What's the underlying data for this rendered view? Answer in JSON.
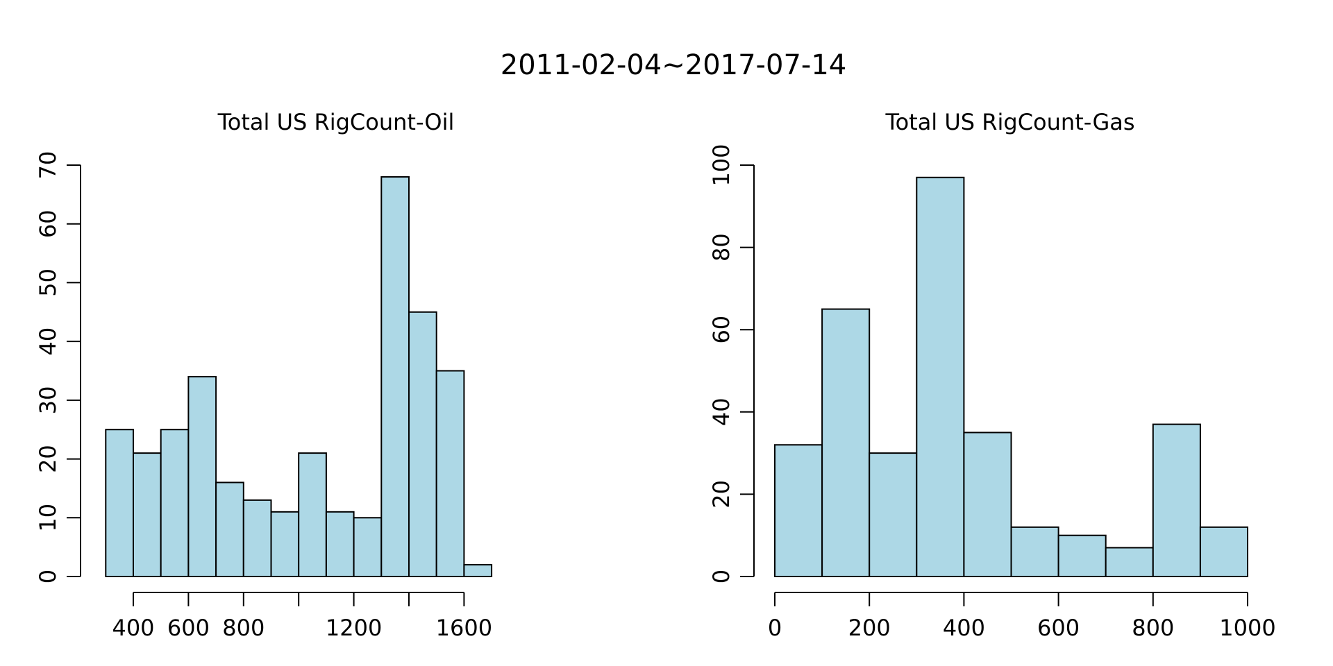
{
  "figure": {
    "title": "2011-02-04~2017-07-14"
  },
  "chart_data": [
    {
      "type": "bar",
      "subtype": "histogram",
      "title": "Total US RigCount-Oil",
      "xlabel": "",
      "ylabel": "",
      "bin_edges": [
        300,
        400,
        500,
        600,
        700,
        800,
        900,
        1000,
        1100,
        1200,
        1300,
        1400,
        1500,
        1600,
        1700
      ],
      "values": [
        25,
        21,
        25,
        34,
        16,
        13,
        11,
        21,
        11,
        10,
        68,
        45,
        35,
        2
      ],
      "x_axis_range": [
        400,
        1600
      ],
      "x_ticks": [
        400,
        600,
        800,
        1000,
        1200,
        1400,
        1600
      ],
      "x_tick_labels": [
        "400",
        "600",
        "800",
        "",
        "1200",
        "",
        "1600"
      ],
      "y_ticks": [
        0,
        10,
        20,
        30,
        40,
        50,
        60,
        70
      ],
      "ylim": [
        0,
        70
      ],
      "bar_color": "#add8e6",
      "grid": false,
      "legend": "none"
    },
    {
      "type": "bar",
      "subtype": "histogram",
      "title": "Total US RigCount-Gas",
      "xlabel": "",
      "ylabel": "",
      "bin_edges": [
        0,
        100,
        200,
        300,
        400,
        500,
        600,
        700,
        800,
        900,
        1000
      ],
      "values": [
        32,
        65,
        30,
        97,
        35,
        12,
        10,
        7,
        37,
        12
      ],
      "x_axis_range": [
        0,
        1000
      ],
      "x_ticks": [
        0,
        200,
        400,
        600,
        800,
        1000
      ],
      "x_tick_labels": [
        "0",
        "200",
        "400",
        "600",
        "800",
        "1000"
      ],
      "y_ticks": [
        0,
        20,
        40,
        60,
        80,
        100
      ],
      "ylim": [
        0,
        100
      ],
      "bar_color": "#add8e6",
      "grid": false,
      "legend": "none"
    }
  ]
}
